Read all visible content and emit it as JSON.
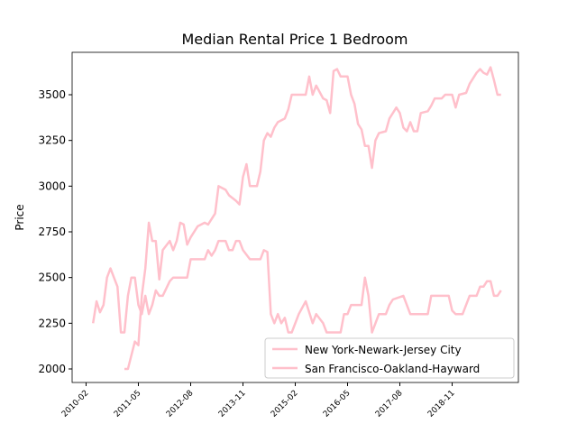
{
  "chart_data": {
    "type": "line",
    "title": "Median Rental Price 1 Bedroom",
    "ylabel": "Price",
    "xlim": [
      "2009-10",
      "2020-06"
    ],
    "xticks": [
      "2010-02",
      "2011-05",
      "2012-08",
      "2013-11",
      "2015-02",
      "2016-05",
      "2017-08",
      "2018-11"
    ],
    "ylim": [
      1926,
      3732
    ],
    "yticks": [
      2000,
      2250,
      2500,
      2750,
      3000,
      3250,
      3500
    ],
    "legend": "lower right",
    "series": [
      {
        "name": "New York-Newark-Jersey City",
        "color": "#ffc0cb",
        "x": [
          "2010-04",
          "2010-05",
          "2010-06",
          "2010-07",
          "2010-08",
          "2010-09",
          "2010-10",
          "2010-11",
          "2010-12",
          "2011-01",
          "2011-02",
          "2011-03",
          "2011-04",
          "2011-05",
          "2011-06",
          "2011-07",
          "2011-08",
          "2011-09",
          "2011-10",
          "2011-11",
          "2011-12",
          "2012-02",
          "2012-03",
          "2012-07",
          "2012-08",
          "2012-09",
          "2012-12",
          "2013-01",
          "2013-02",
          "2013-03",
          "2013-04",
          "2013-06",
          "2013-07",
          "2013-08",
          "2013-09",
          "2013-10",
          "2013-11",
          "2014-01",
          "2014-04",
          "2014-05",
          "2014-06",
          "2014-07",
          "2014-08",
          "2014-09",
          "2014-10",
          "2014-11",
          "2014-12",
          "2015-01",
          "2015-03",
          "2015-05",
          "2015-07",
          "2015-08",
          "2015-10",
          "2015-11",
          "2016-03",
          "2016-04",
          "2016-05",
          "2016-06",
          "2016-09",
          "2016-10",
          "2016-11",
          "2016-12",
          "2017-02",
          "2017-04",
          "2017-05",
          "2017-06",
          "2017-09",
          "2017-11",
          "2018-04",
          "2018-05",
          "2018-10",
          "2018-11",
          "2018-12",
          "2019-02",
          "2019-04",
          "2019-06",
          "2019-07",
          "2019-08",
          "2019-09",
          "2019-10",
          "2019-11",
          "2019-12",
          "2020-01"
        ],
        "values": [
          2250,
          2370,
          2310,
          2350,
          2500,
          2550,
          2500,
          2450,
          2200,
          2200,
          2400,
          2500,
          2500,
          2350,
          2300,
          2400,
          2300,
          2350,
          2430,
          2400,
          2400,
          2480,
          2500,
          2500,
          2600,
          2600,
          2600,
          2650,
          2620,
          2650,
          2700,
          2700,
          2650,
          2650,
          2700,
          2700,
          2650,
          2600,
          2600,
          2650,
          2640,
          2300,
          2250,
          2300,
          2250,
          2280,
          2200,
          2200,
          2300,
          2370,
          2250,
          2300,
          2250,
          2200,
          2200,
          2300,
          2300,
          2350,
          2350,
          2500,
          2400,
          2200,
          2300,
          2300,
          2350,
          2380,
          2400,
          2300,
          2300,
          2400,
          2400,
          2320,
          2300,
          2300,
          2400,
          2400,
          2450,
          2450,
          2480,
          2480,
          2400,
          2400,
          2430
        ]
      },
      {
        "name": "San Francisco-Oakland-Hayward",
        "color": "#ffc0cb",
        "x": [
          "2011-01",
          "2011-02",
          "2011-04",
          "2011-05",
          "2011-06",
          "2011-07",
          "2011-08",
          "2011-09",
          "2011-10",
          "2011-11",
          "2011-12",
          "2012-02",
          "2012-03",
          "2012-04",
          "2012-05",
          "2012-06",
          "2012-07",
          "2012-08",
          "2012-10",
          "2012-12",
          "2013-01",
          "2013-03",
          "2013-04",
          "2013-05",
          "2013-06",
          "2013-07",
          "2013-09",
          "2013-10",
          "2013-11",
          "2013-12",
          "2014-01",
          "2014-03",
          "2014-04",
          "2014-05",
          "2014-06",
          "2014-07",
          "2014-08",
          "2014-09",
          "2014-11",
          "2014-12",
          "2015-01",
          "2015-03",
          "2015-05",
          "2015-06",
          "2015-07",
          "2015-08",
          "2015-10",
          "2015-11",
          "2015-12",
          "2016-01",
          "2016-02",
          "2016-03",
          "2016-05",
          "2016-06",
          "2016-07",
          "2016-08",
          "2016-09",
          "2016-10",
          "2016-11",
          "2016-12",
          "2017-01",
          "2017-02",
          "2017-04",
          "2017-05",
          "2017-06",
          "2017-07",
          "2017-08",
          "2017-09",
          "2017-10",
          "2017-11",
          "2017-12",
          "2018-01",
          "2018-02",
          "2018-04",
          "2018-05",
          "2018-06",
          "2018-08",
          "2018-09",
          "2018-11",
          "2018-12",
          "2019-01",
          "2019-03",
          "2019-04",
          "2019-06",
          "2019-07",
          "2019-08",
          "2019-09",
          "2019-10",
          "2019-11",
          "2019-12",
          "2020-01"
        ],
        "values": [
          2000,
          2000,
          2150,
          2130,
          2400,
          2550,
          2800,
          2700,
          2700,
          2490,
          2650,
          2700,
          2650,
          2700,
          2800,
          2790,
          2680,
          2720,
          2780,
          2800,
          2790,
          2850,
          3000,
          2990,
          2980,
          2950,
          2920,
          2900,
          3050,
          3120,
          3000,
          3000,
          3080,
          3250,
          3290,
          3270,
          3320,
          3350,
          3370,
          3420,
          3500,
          3500,
          3500,
          3600,
          3500,
          3550,
          3480,
          3470,
          3400,
          3630,
          3640,
          3600,
          3600,
          3500,
          3450,
          3340,
          3310,
          3220,
          3220,
          3100,
          3250,
          3290,
          3300,
          3370,
          3400,
          3430,
          3400,
          3320,
          3300,
          3350,
          3300,
          3300,
          3400,
          3410,
          3440,
          3480,
          3480,
          3500,
          3500,
          3430,
          3500,
          3510,
          3560,
          3620,
          3640,
          3620,
          3610,
          3650,
          3580,
          3500,
          3500
        ]
      }
    ]
  }
}
